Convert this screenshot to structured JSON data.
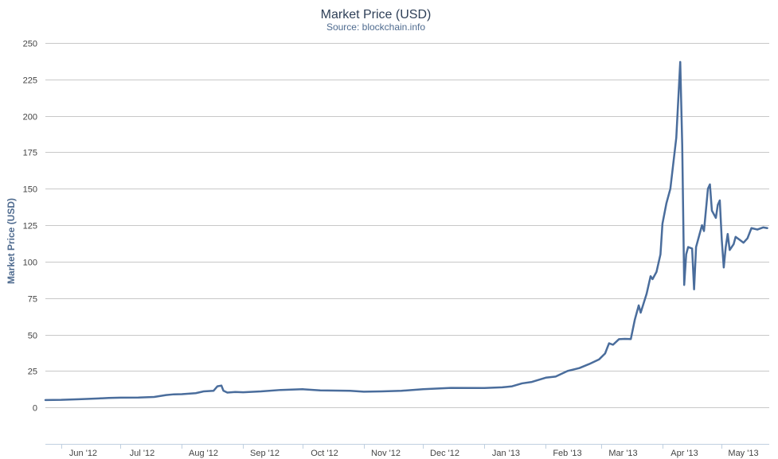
{
  "chart_data": {
    "type": "line",
    "title": "Market Price (USD)",
    "subtitle": "Source: blockchain.info",
    "ylabel": "Market Price (USD)",
    "xlabel": "",
    "ylim": [
      -25,
      250
    ],
    "yticks": [
      0,
      25,
      50,
      75,
      100,
      125,
      150,
      175,
      200,
      225,
      250
    ],
    "xlim": [
      "2012-05-24",
      "2013-05-25"
    ],
    "xticks": [
      {
        "label": "Jun '12",
        "date": "2012-06-01"
      },
      {
        "label": "Jul '12",
        "date": "2012-07-01"
      },
      {
        "label": "Aug '12",
        "date": "2012-08-01"
      },
      {
        "label": "Sep '12",
        "date": "2012-09-01"
      },
      {
        "label": "Oct '12",
        "date": "2012-10-01"
      },
      {
        "label": "Nov '12",
        "date": "2012-11-01"
      },
      {
        "label": "Dec '12",
        "date": "2012-12-01"
      },
      {
        "label": "Jan '13",
        "date": "2013-01-01"
      },
      {
        "label": "Feb '13",
        "date": "2013-02-01"
      },
      {
        "label": "Mar '13",
        "date": "2013-03-01"
      },
      {
        "label": "Apr '13",
        "date": "2013-04-01"
      },
      {
        "label": "May '13",
        "date": "2013-05-01"
      }
    ],
    "grid": true,
    "series": [
      {
        "color": "#4a6d9c",
        "points": [
          [
            "2012-05-24",
            5.1
          ],
          [
            "2012-06-01",
            5.2
          ],
          [
            "2012-06-10",
            5.6
          ],
          [
            "2012-06-20",
            6.2
          ],
          [
            "2012-06-25",
            6.5
          ],
          [
            "2012-07-01",
            6.7
          ],
          [
            "2012-07-10",
            6.8
          ],
          [
            "2012-07-18",
            7.2
          ],
          [
            "2012-07-24",
            8.5
          ],
          [
            "2012-07-28",
            9.0
          ],
          [
            "2012-08-01",
            9.1
          ],
          [
            "2012-08-08",
            9.8
          ],
          [
            "2012-08-12",
            11.0
          ],
          [
            "2012-08-17",
            11.4
          ],
          [
            "2012-08-19",
            14.5
          ],
          [
            "2012-08-21",
            15.0
          ],
          [
            "2012-08-22",
            11.5
          ],
          [
            "2012-08-24",
            10.2
          ],
          [
            "2012-08-28",
            10.6
          ],
          [
            "2012-09-01",
            10.4
          ],
          [
            "2012-09-10",
            11.0
          ],
          [
            "2012-09-20",
            12.0
          ],
          [
            "2012-10-01",
            12.5
          ],
          [
            "2012-10-10",
            11.7
          ],
          [
            "2012-10-25",
            11.4
          ],
          [
            "2012-11-01",
            10.8
          ],
          [
            "2012-11-10",
            11.0
          ],
          [
            "2012-11-20",
            11.4
          ],
          [
            "2012-12-01",
            12.5
          ],
          [
            "2012-12-15",
            13.4
          ],
          [
            "2013-01-01",
            13.3
          ],
          [
            "2013-01-10",
            13.8
          ],
          [
            "2013-01-15",
            14.5
          ],
          [
            "2013-01-20",
            16.5
          ],
          [
            "2013-01-25",
            17.5
          ],
          [
            "2013-02-01",
            20.4
          ],
          [
            "2013-02-06",
            21.2
          ],
          [
            "2013-02-12",
            25.0
          ],
          [
            "2013-02-18",
            27.0
          ],
          [
            "2013-02-23",
            29.8
          ],
          [
            "2013-02-28",
            33.0
          ],
          [
            "2013-03-03",
            37.0
          ],
          [
            "2013-03-05",
            44.0
          ],
          [
            "2013-03-07",
            43.0
          ],
          [
            "2013-03-10",
            46.8
          ],
          [
            "2013-03-13",
            47.0
          ],
          [
            "2013-03-16",
            46.9
          ],
          [
            "2013-03-18",
            60.0
          ],
          [
            "2013-03-20",
            70.0
          ],
          [
            "2013-03-21",
            65.0
          ],
          [
            "2013-03-24",
            78.0
          ],
          [
            "2013-03-26",
            90.0
          ],
          [
            "2013-03-27",
            88.0
          ],
          [
            "2013-03-29",
            93.0
          ],
          [
            "2013-03-31",
            105.0
          ],
          [
            "2013-04-01",
            126.0
          ],
          [
            "2013-04-03",
            140.0
          ],
          [
            "2013-04-05",
            150.0
          ],
          [
            "2013-04-08",
            185.0
          ],
          [
            "2013-04-10",
            237.0
          ],
          [
            "2013-04-11",
            180.0
          ],
          [
            "2013-04-12",
            84.0
          ],
          [
            "2013-04-13",
            105.0
          ],
          [
            "2013-04-14",
            110.0
          ],
          [
            "2013-04-16",
            109.0
          ],
          [
            "2013-04-17",
            81.0
          ],
          [
            "2013-04-18",
            110.0
          ],
          [
            "2013-04-20",
            120.0
          ],
          [
            "2013-04-21",
            125.0
          ],
          [
            "2013-04-22",
            121.0
          ],
          [
            "2013-04-24",
            150.0
          ],
          [
            "2013-04-25",
            153.0
          ],
          [
            "2013-04-26",
            135.0
          ],
          [
            "2013-04-28",
            130.0
          ],
          [
            "2013-04-29",
            139.0
          ],
          [
            "2013-04-30",
            142.0
          ],
          [
            "2013-05-01",
            115.0
          ],
          [
            "2013-05-02",
            96.0
          ],
          [
            "2013-05-03",
            110.0
          ],
          [
            "2013-05-04",
            119.0
          ],
          [
            "2013-05-05",
            108.0
          ],
          [
            "2013-05-07",
            112.0
          ],
          [
            "2013-05-08",
            117.0
          ],
          [
            "2013-05-10",
            115.0
          ],
          [
            "2013-05-12",
            113.0
          ],
          [
            "2013-05-14",
            116.0
          ],
          [
            "2013-05-16",
            123.0
          ],
          [
            "2013-05-19",
            122.0
          ],
          [
            "2013-05-22",
            123.5
          ],
          [
            "2013-05-24",
            123.0
          ]
        ]
      }
    ]
  }
}
